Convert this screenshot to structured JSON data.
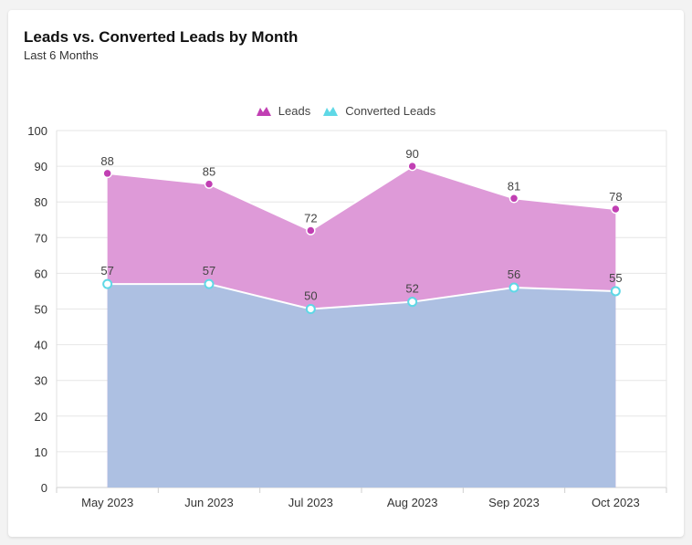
{
  "header": {
    "title": "Leads vs. Converted Leads by Month",
    "subtitle": "Last 6 Months"
  },
  "legend": [
    {
      "label": "Leads",
      "color": "#c13fb3",
      "icon": "area-triangle-icon"
    },
    {
      "label": "Converted Leads",
      "color": "#5fd8e6",
      "icon": "area-triangle-icon"
    }
  ],
  "chart_data": {
    "type": "area",
    "title": "Leads vs. Converted Leads by Month",
    "subtitle": "Last 6 Months",
    "categories": [
      "May 2023",
      "Jun 2023",
      "Jul 2023",
      "Aug 2023",
      "Sep 2023",
      "Oct 2023"
    ],
    "series": [
      {
        "name": "Leads",
        "values": [
          88,
          85,
          72,
          90,
          81,
          78
        ],
        "fill": "#de9ad8",
        "marker": "#c13fb3"
      },
      {
        "name": "Converted Leads",
        "values": [
          57,
          57,
          50,
          52,
          56,
          55
        ],
        "fill": "#adc0e2",
        "marker": "#5fd8e6"
      }
    ],
    "yticks": [
      0,
      10,
      20,
      30,
      40,
      50,
      60,
      70,
      80,
      90,
      100
    ],
    "ylim": [
      0,
      100
    ],
    "grid": true,
    "legend_position": "top-center",
    "xlabel": "",
    "ylabel": ""
  }
}
